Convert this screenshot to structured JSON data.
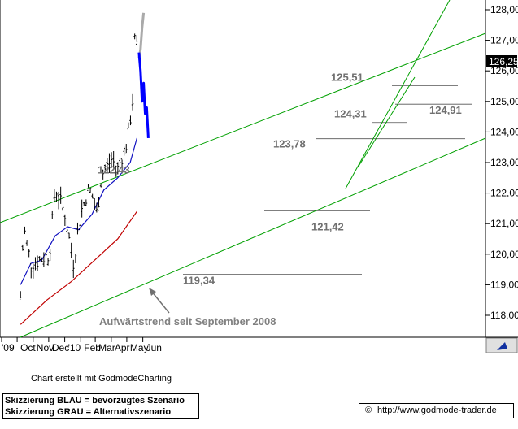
{
  "chart_data": {
    "type": "candlestick",
    "title": "",
    "xlabel": "",
    "ylabel": "",
    "ylim": [
      117.6,
      128.25
    ],
    "y_ticks": [
      "118,00",
      "119,00",
      "120,00",
      "121,00",
      "122,00",
      "123,00",
      "124,00",
      "125,00",
      "126,00",
      "127,00",
      "128,00"
    ],
    "x_ticks": [
      "'09",
      "Oct",
      "Nov",
      "Dec",
      "'10",
      "Feb",
      "Mar",
      "Apr",
      "May",
      "Jun"
    ],
    "last_price": "126,25",
    "grid": false,
    "levels": [
      {
        "label": "125,51",
        "value": 125.51
      },
      {
        "label": "124,91",
        "value": 124.91
      },
      {
        "label": "124,31",
        "value": 124.31
      },
      {
        "label": "123,78",
        "value": 123.78
      },
      {
        "label": "122,43",
        "value": 122.43
      },
      {
        "label": "121,42",
        "value": 121.42
      },
      {
        "label": "119,34",
        "value": 119.34
      }
    ],
    "annotation": "Aufwärtstrend seit September 2008",
    "series": [
      {
        "color": "#000000",
        "kind": "ohlc-bars",
        "x": [
          "2009-09-25",
          "2009-10-01",
          "2009-10-15",
          "2009-11-01",
          "2009-11-20",
          "2009-12-01",
          "2009-12-20",
          "2010-01-05",
          "2010-01-20",
          "2010-02-05",
          "2010-02-20",
          "2010-03-01",
          "2010-03-20",
          "2010-04-01",
          "2010-04-20",
          "2010-05-01",
          "2010-05-05",
          "2010-05-10"
        ],
        "close": [
          118.6,
          120.9,
          119.7,
          119.8,
          120.0,
          122.2,
          121.3,
          119.7,
          121.4,
          122.2,
          121.3,
          122.6,
          123.1,
          122.8,
          123.7,
          125.2,
          127.8,
          126.0
        ]
      },
      {
        "color": "#1010c0",
        "kind": "moving-average-1",
        "x": [
          "2009-09-25",
          "2009-10-15",
          "2009-11-05",
          "2009-12-01",
          "2009-12-25",
          "2010-01-15",
          "2010-02-10",
          "2010-03-05",
          "2010-04-01",
          "2010-04-25",
          "2010-05-08"
        ],
        "values": [
          119.0,
          119.7,
          119.8,
          120.6,
          120.9,
          120.8,
          121.3,
          122.1,
          122.5,
          123.0,
          123.8
        ]
      },
      {
        "color": "#c00000",
        "kind": "moving-average-2",
        "x": [
          "2009-09-25",
          "2009-11-15",
          "2010-01-01",
          "2010-02-15",
          "2010-04-01",
          "2010-05-08"
        ],
        "values": [
          117.7,
          118.5,
          119.1,
          119.8,
          120.5,
          121.4
        ]
      },
      {
        "color": "#0000ff",
        "name": "Skizzierung BLAU = bevorzugtes Szenario",
        "x": [
          "2010-05-12",
          "2010-05-15",
          "2010-05-18",
          "2010-05-21",
          "2010-05-24",
          "2010-05-27",
          "2010-05-30"
        ],
        "values": [
          126.6,
          126.0,
          125.0,
          125.6,
          124.6,
          124.8,
          123.8
        ]
      },
      {
        "color": "#aaaaaa",
        "name": "Skizzierung GRAU = Alternativszenario",
        "x": [
          "2010-05-12",
          "2010-05-15",
          "2010-05-18",
          "2010-05-21"
        ],
        "values": [
          126.4,
          126.7,
          127.4,
          127.9
        ]
      }
    ]
  },
  "footer": {
    "credit": "Chart erstellt mit GodmodeCharting",
    "legend_blue": "Skizzierung BLAU = bevorzugtes Szenario",
    "legend_gray": "Skizzierung GRAU = Alternativszenario",
    "copyright_symbol": "©",
    "url": "http://www.godmode-trader.de"
  },
  "colors": {
    "trend_channel": "#00a000",
    "ma_fast": "#1010c0",
    "ma_slow": "#c00000",
    "scenario_blue": "#0000ff",
    "scenario_gray": "#aaaaaa",
    "price_tag": "#000000"
  }
}
